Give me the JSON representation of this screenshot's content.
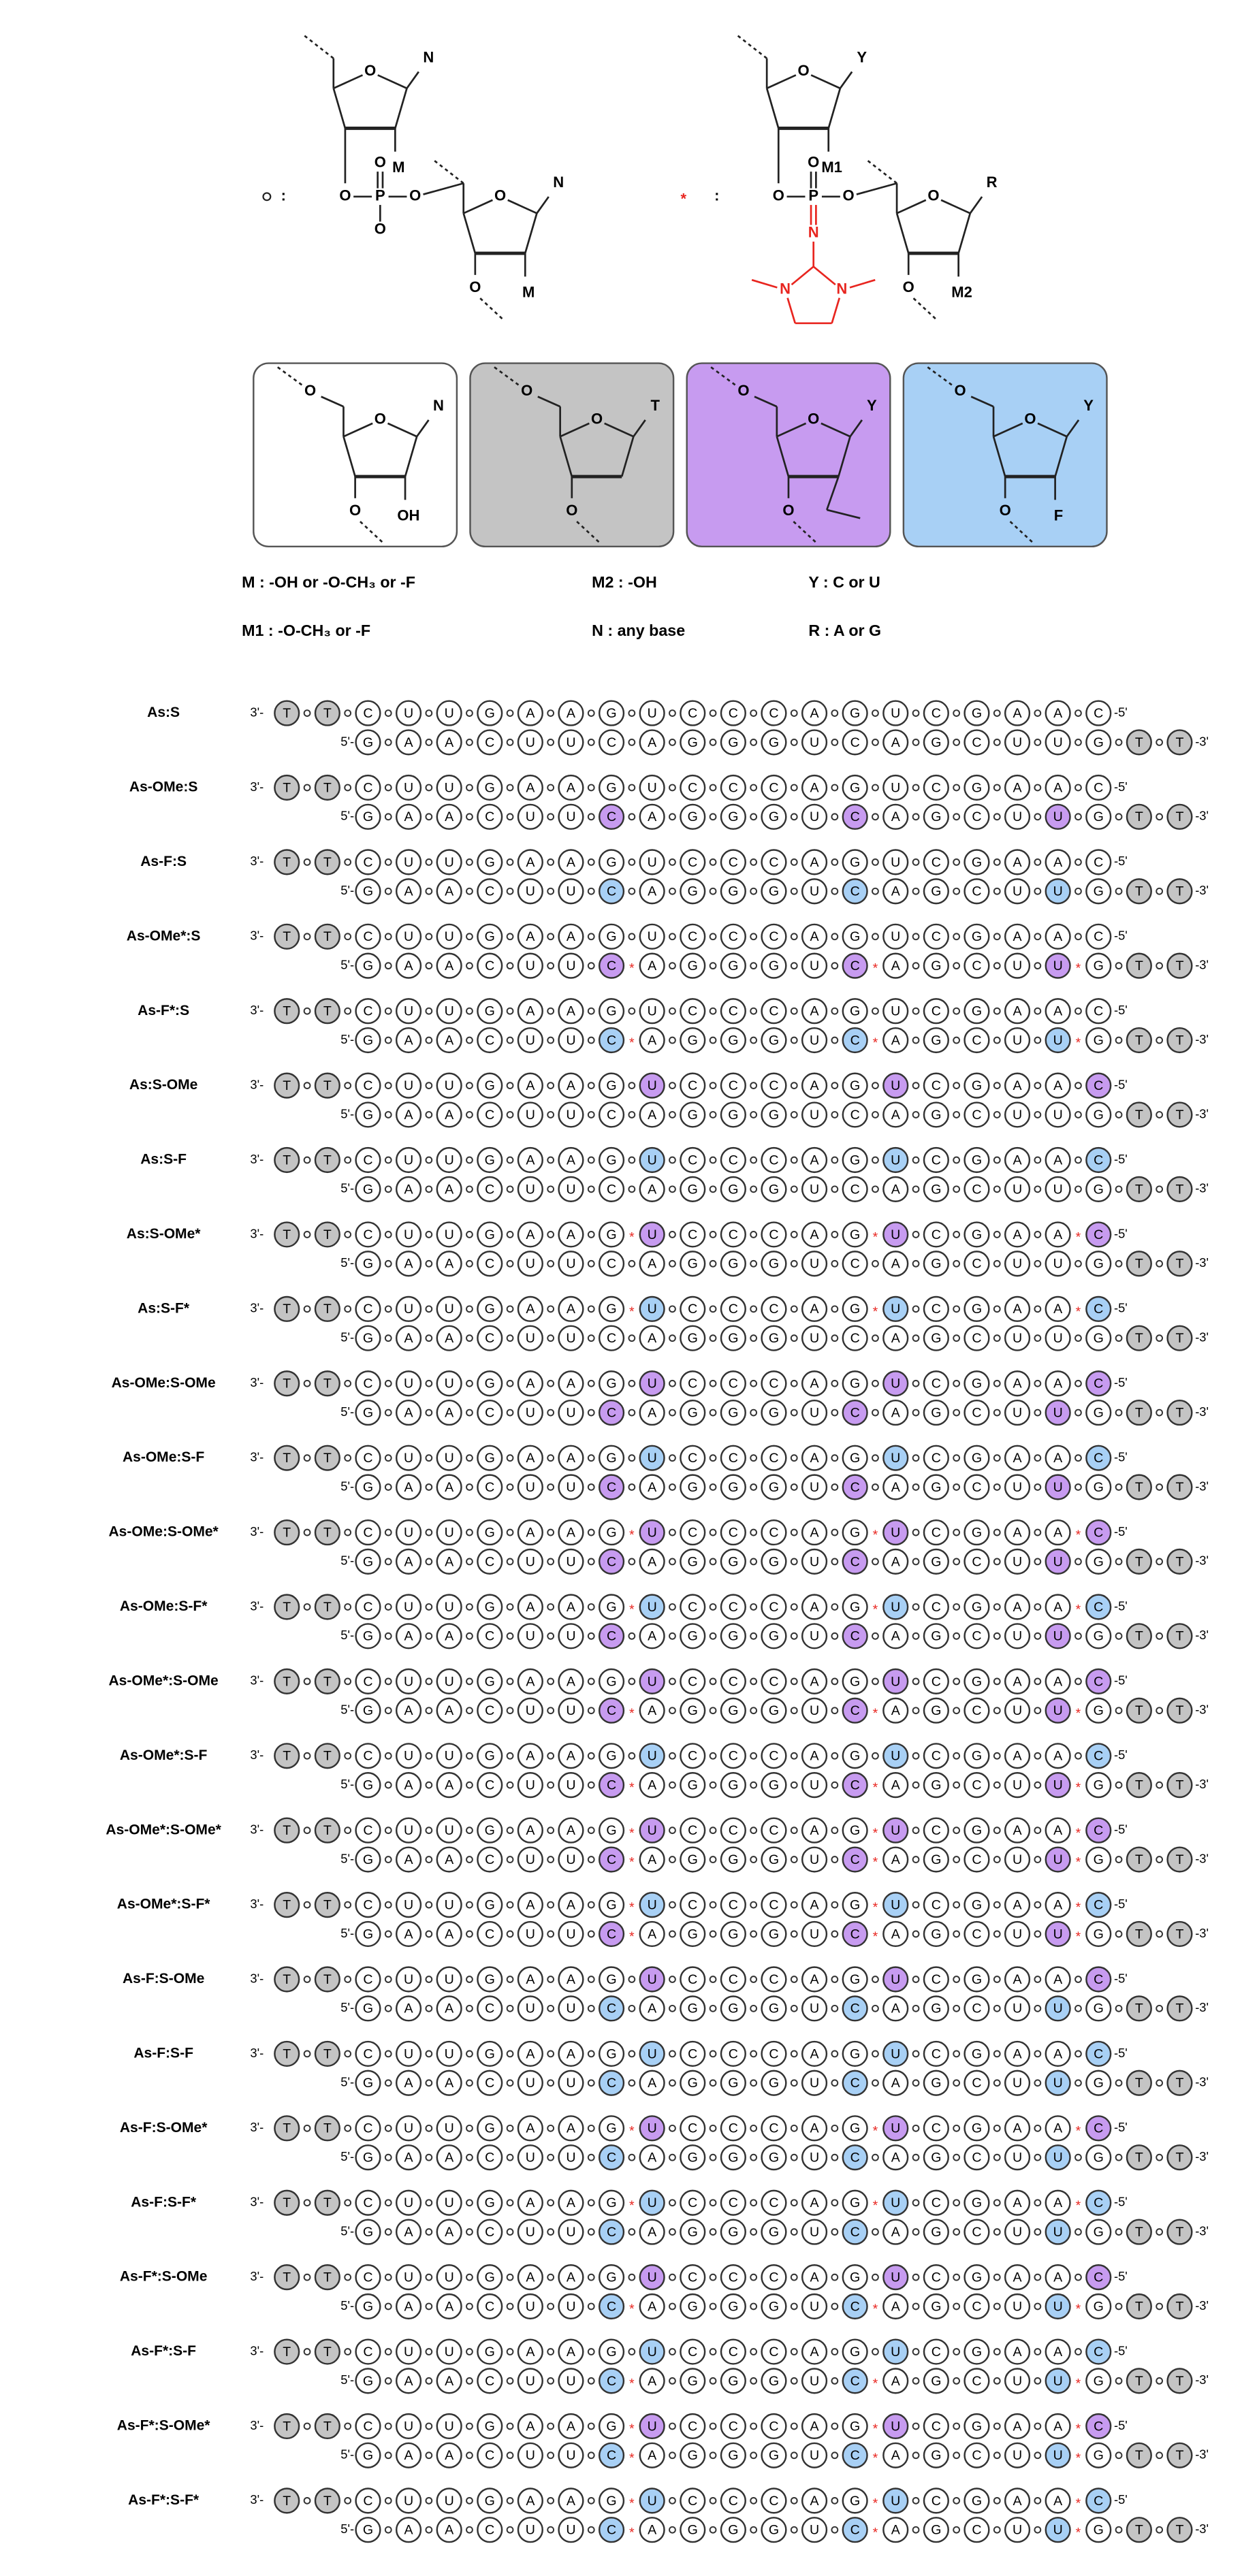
{
  "chem": {
    "O": "O",
    "P": "P",
    "N": "N",
    "M": "M",
    "Y": "Y",
    "M1": "M1",
    "M2": "M2",
    "R": "R",
    "T": "T",
    "OH": "OH",
    "F": "F",
    "colon": ":",
    "linker": "o",
    "star": "*"
  },
  "legend": [
    "M : -OH or -O-CH₃ or -F",
    "M2 : -OH",
    "Y : C or U",
    "M1 : -O-CH₃ or -F",
    "N : any base",
    "R : A or G"
  ],
  "modification_colors": {
    "OMe": "#c79bf0",
    "F": "#a8d0f5"
  },
  "dT_color": "#c4c4c4",
  "link_color": "#e8251f",
  "ends": {
    "top_start": "3'-",
    "top_end": "-5'",
    "bottom_start": "5'-",
    "bottom_end": "-3'"
  },
  "strand_3to5": [
    "T",
    "T",
    "C",
    "U",
    "U",
    "G",
    "A",
    "A",
    "G",
    "U",
    "C",
    "C",
    "C",
    "A",
    "G",
    "U",
    "C",
    "G",
    "A",
    "A",
    "C"
  ],
  "strand_5to3": [
    "G",
    "A",
    "A",
    "C",
    "U",
    "U",
    "C",
    "A",
    "G",
    "G",
    "G",
    "U",
    "C",
    "A",
    "G",
    "C",
    "U",
    "U",
    "G",
    "T",
    "T"
  ],
  "duplexes": [
    "As:S",
    "As-OMe:S",
    "As-F:S",
    "As-OMe*:S",
    "As-F*:S",
    "As:S-OMe",
    "As:S-F",
    "As:S-OMe*",
    "As:S-F*",
    "As-OMe:S-OMe",
    "As-OMe:S-F",
    "As-OMe:S-OMe*",
    "As-OMe:S-F*",
    "As-OMe*:S-OMe",
    "As-OMe*:S-F",
    "As-OMe*:S-OMe*",
    "As-OMe*:S-F*",
    "As-F:S-OMe",
    "As-F:S-F",
    "As-F:S-OMe*",
    "As-F:S-F*",
    "As-F*:S-OMe",
    "As-F*:S-F",
    "As-F*:S-OMe*",
    "As-F*:S-F*"
  ]
}
